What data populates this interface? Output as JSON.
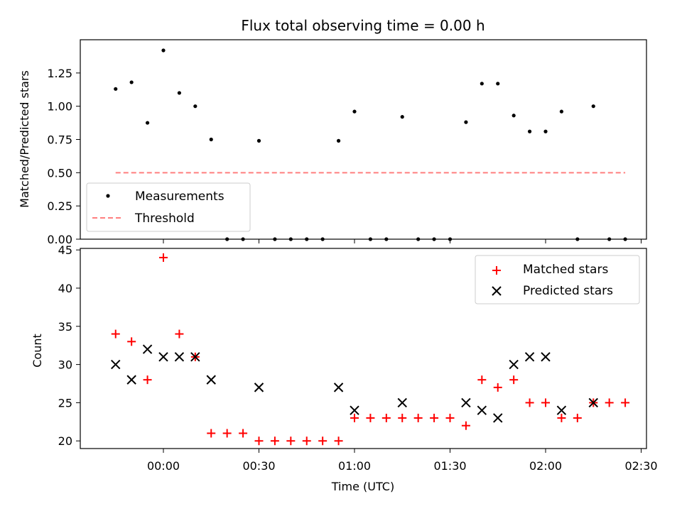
{
  "chart_data": [
    {
      "type": "scatter",
      "title": "Flux total observing time = 0.00 h",
      "xlabel": "",
      "ylabel": "Matched/Predicted stars",
      "ylim": [
        0,
        1.5
      ],
      "yticks": [
        "0.00",
        "0.25",
        "0.50",
        "0.75",
        "1.00",
        "1.25"
      ],
      "legend": "lower-left",
      "series": [
        {
          "name": "Measurements",
          "color": "#000000",
          "x": [
            "-00:15",
            "-00:10",
            "-00:05",
            "00:00",
            "00:05",
            "00:10",
            "00:15",
            "00:20",
            "00:25",
            "00:30",
            "00:35",
            "00:40",
            "00:45",
            "00:50",
            "00:55",
            "01:00",
            "01:05",
            "01:10",
            "01:15",
            "01:20",
            "01:25",
            "01:30",
            "01:35",
            "01:40",
            "01:45",
            "01:50",
            "01:55",
            "02:00",
            "02:05",
            "02:10",
            "02:15",
            "02:20",
            "02:25"
          ],
          "values": [
            1.13,
            1.18,
            0.875,
            1.42,
            1.1,
            1.0,
            0.75,
            0,
            0,
            0.74,
            0,
            0,
            0,
            0,
            0.74,
            0.96,
            0,
            0,
            0.92,
            0,
            0,
            0,
            0.88,
            1.17,
            1.17,
            0.93,
            0.81,
            0.81,
            0.96,
            0,
            1.0,
            0,
            0
          ]
        },
        {
          "name": "Threshold",
          "color": "#ff7f7f",
          "style": "dashed",
          "x": [
            "-00:15",
            "02:25"
          ],
          "values": [
            0.5,
            0.5
          ]
        }
      ]
    },
    {
      "type": "scatter",
      "title": "",
      "xlabel": "Time (UTC)",
      "ylabel": "Count",
      "ylim": [
        19,
        45.2
      ],
      "yticks": [
        "20",
        "25",
        "30",
        "35",
        "40",
        "45"
      ],
      "xticks": [
        "00:00",
        "00:30",
        "01:00",
        "01:30",
        "02:00",
        "02:30"
      ],
      "legend": "upper-right",
      "series": [
        {
          "name": "Matched stars",
          "color": "#ff0000",
          "marker": "plus",
          "x": [
            "-00:15",
            "-00:10",
            "-00:05",
            "00:00",
            "00:05",
            "00:10",
            "00:15",
            "00:20",
            "00:25",
            "00:30",
            "00:35",
            "00:40",
            "00:45",
            "00:50",
            "00:55",
            "01:00",
            "01:05",
            "01:10",
            "01:15",
            "01:20",
            "01:25",
            "01:30",
            "01:35",
            "01:40",
            "01:45",
            "01:50",
            "01:55",
            "02:00",
            "02:05",
            "02:10",
            "02:15",
            "02:20",
            "02:25"
          ],
          "values": [
            34,
            33,
            28,
            44,
            34,
            31,
            21,
            21,
            21,
            20,
            20,
            20,
            20,
            20,
            20,
            23,
            23,
            23,
            23,
            23,
            23,
            23,
            22,
            28,
            27,
            28,
            25,
            25,
            23,
            23,
            25,
            25,
            25
          ]
        },
        {
          "name": "Predicted stars",
          "color": "#000000",
          "marker": "x",
          "x": [
            "-00:15",
            "-00:10",
            "-00:05",
            "00:00",
            "00:05",
            "00:10",
            "00:15",
            "00:30",
            "00:55",
            "01:00",
            "01:15",
            "01:35",
            "01:40",
            "01:45",
            "01:50",
            "01:55",
            "02:00",
            "02:05",
            "02:15"
          ],
          "values": [
            30,
            28,
            32,
            31,
            31,
            31,
            28,
            27,
            27,
            24,
            25,
            25,
            24,
            23,
            30,
            31,
            31,
            24,
            25
          ]
        }
      ]
    }
  ]
}
